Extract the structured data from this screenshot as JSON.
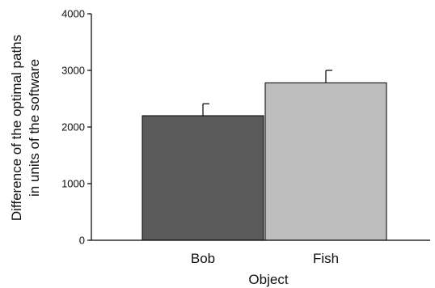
{
  "chart_data": {
    "type": "bar",
    "categories": [
      "Bob",
      "Fish"
    ],
    "values": [
      2200,
      2780
    ],
    "errors": [
      210,
      220
    ],
    "colors": [
      "#5a5a5a",
      "#bdbdbd"
    ],
    "xlabel": "Object",
    "ylabel_line1": "Difference of the optimal paths",
    "ylabel_line2": "in units of the software",
    "ylim": [
      0,
      4000
    ],
    "yticks": [
      0,
      1000,
      2000,
      3000,
      4000
    ],
    "grid": false,
    "error_bars": "upper"
  }
}
